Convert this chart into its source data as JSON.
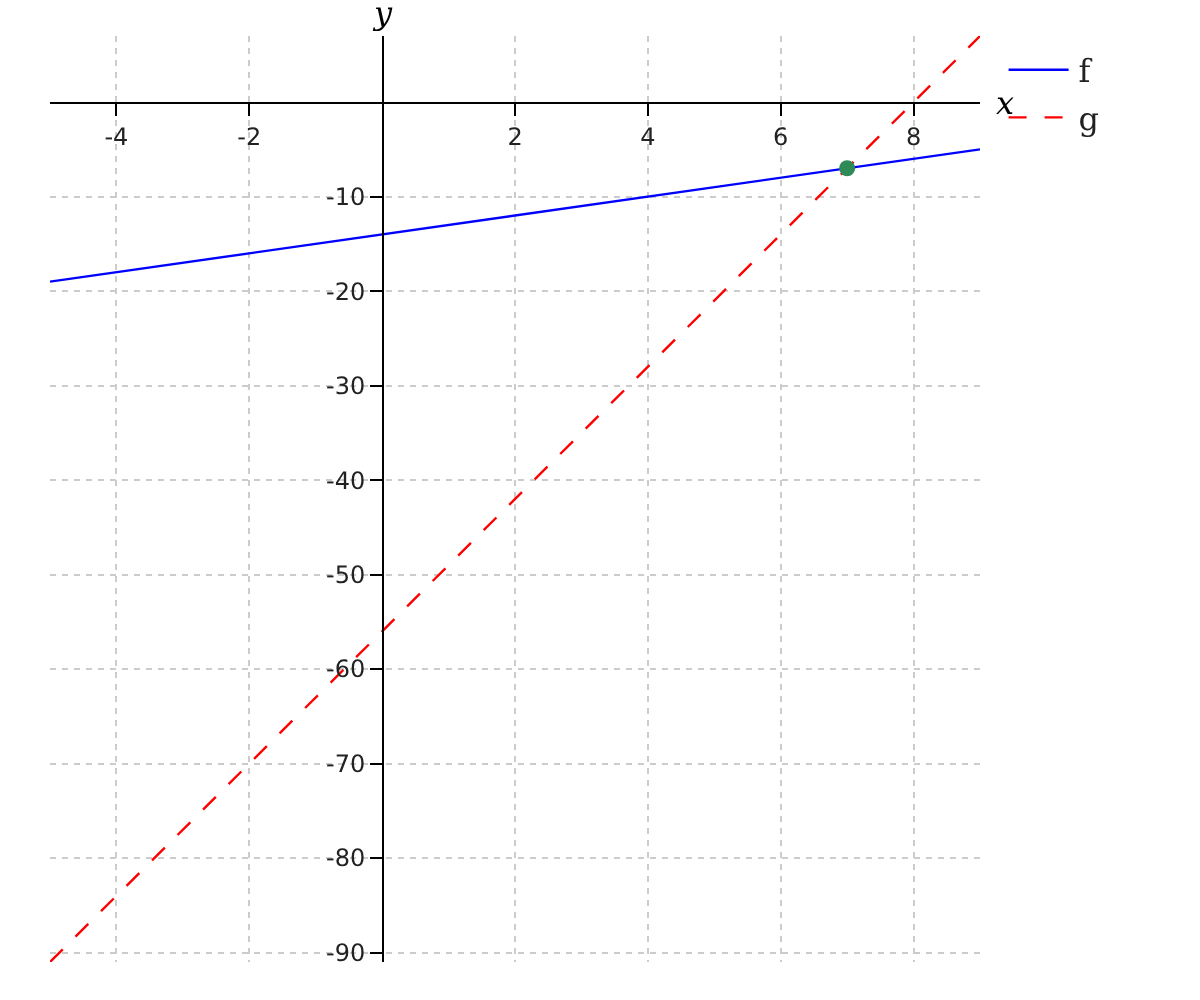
{
  "chart_data": {
    "type": "line",
    "xlabel": "x",
    "ylabel": "y",
    "xlim": [
      -5,
      9
    ],
    "ylim": [
      -91,
      7
    ],
    "xticks": [
      -4,
      -2,
      2,
      4,
      6,
      8
    ],
    "yticks": [
      -90,
      -80,
      -70,
      -60,
      -50,
      -40,
      -30,
      -20,
      -10
    ],
    "grid": true,
    "legend": "top right",
    "series": [
      {
        "name": "f",
        "color": "#0000ff",
        "x": [
          -5,
          9
        ],
        "values": [
          -19,
          -5
        ],
        "line_style": "solid"
      },
      {
        "name": "g",
        "color": "#ff0000",
        "x": [
          -5,
          9
        ],
        "values": [
          -91,
          7
        ],
        "line_style": "dashed"
      },
      {
        "type": "scatter",
        "color": "#2e8b57",
        "x": [
          7
        ],
        "values": [
          -7
        ],
        "marker": "circle"
      }
    ]
  }
}
